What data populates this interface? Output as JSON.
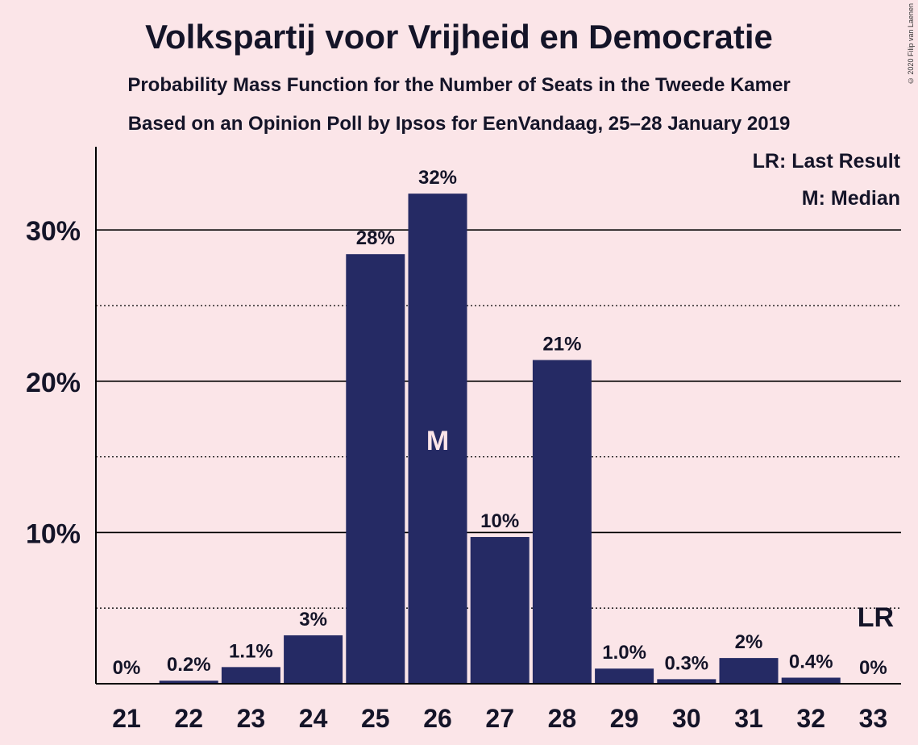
{
  "header": {
    "title": "Volkspartij voor Vrijheid en Democratie",
    "subtitle1": "Probability Mass Function for the Number of Seats in the Tweede Kamer",
    "subtitle2": "Based on an Opinion Poll by Ipsos for EenVandaag, 25–28 January 2019",
    "copyright": "© 2020 Filip van Laenen"
  },
  "legend": {
    "last_result": "LR: Last Result",
    "median": "M: Median"
  },
  "colors": {
    "background": "#fbe5e8",
    "bar": "#252a64",
    "text": "#141428",
    "median_label": "#fbe5e8"
  },
  "chart_data": {
    "type": "bar",
    "categories": [
      "21",
      "22",
      "23",
      "24",
      "25",
      "26",
      "27",
      "28",
      "29",
      "30",
      "31",
      "32",
      "33"
    ],
    "values": [
      0,
      0.2,
      1.1,
      3.2,
      28.4,
      32.4,
      9.7,
      21.4,
      1.0,
      0.3,
      1.7,
      0.4,
      0
    ],
    "data_labels": [
      "0%",
      "0.2%",
      "1.1%",
      "3%",
      "28%",
      "32%",
      "10%",
      "21%",
      "1.0%",
      "0.3%",
      "2%",
      "0.4%",
      "0%"
    ],
    "y_ticks": [
      10,
      20,
      30
    ],
    "y_tick_labels": [
      "10%",
      "20%",
      "30%"
    ],
    "y_minor_ticks": [
      5,
      15,
      25
    ],
    "ylim": [
      0,
      35.5
    ],
    "median_category": "26",
    "median_marker": "M",
    "last_result_category": "33",
    "last_result_marker": "LR",
    "grid": true
  }
}
